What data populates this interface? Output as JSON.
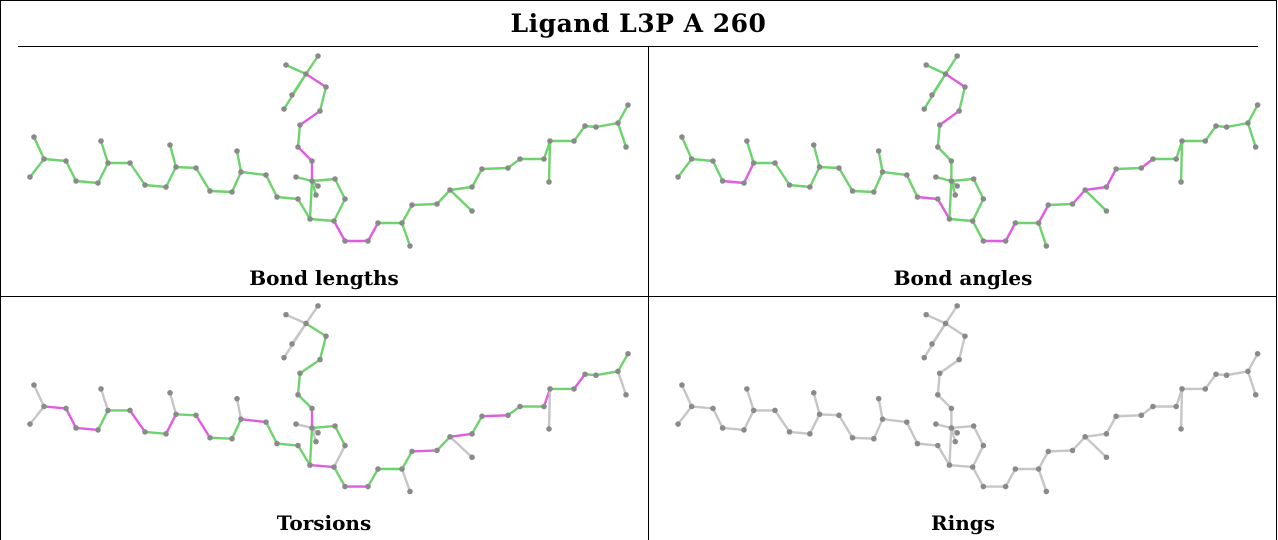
{
  "title": "Ligand L3P A 260",
  "colors": {
    "good": "#6ed36e",
    "outlier": "#e05ce0",
    "neutral": "#c6c6c6",
    "atom": "#8a8a8a"
  },
  "panels": [
    {
      "caption": "Bond lengths",
      "mode": "bond-lengths"
    },
    {
      "caption": "Bond angles",
      "mode": "bond-angles"
    },
    {
      "caption": "Torsions",
      "mode": "torsions"
    },
    {
      "caption": "Rings",
      "mode": "rings"
    }
  ]
}
